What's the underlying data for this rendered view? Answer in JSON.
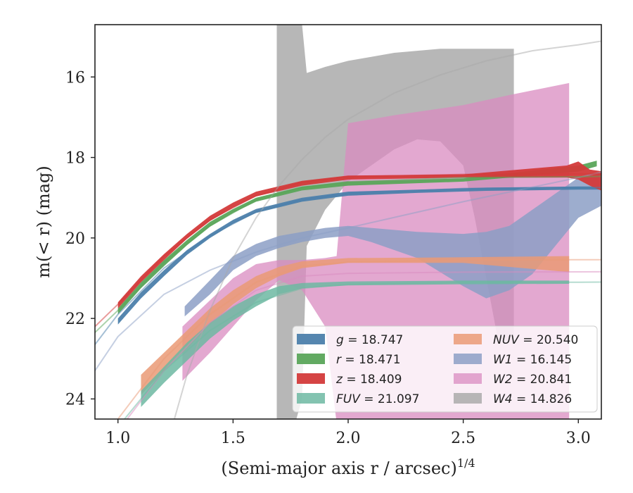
{
  "chart_data": {
    "type": "line",
    "xlabel": "(Semi-major axis r / arcsec)^1/4",
    "ylabel": "m(< r) (mag)",
    "xlim": [
      0.9,
      3.1
    ],
    "ylim": [
      24.5,
      14.7
    ],
    "y_inverted": true,
    "xticks": [
      "1.0",
      "1.5",
      "2.0",
      "2.5",
      "3.0"
    ],
    "yticks": [
      "16",
      "18",
      "20",
      "22",
      "24"
    ],
    "xtick_values": [
      1.0,
      1.5,
      2.0,
      2.5,
      3.0
    ],
    "ytick_values": [
      16,
      18,
      20,
      22,
      24
    ],
    "grid": false,
    "legend_position": "bottom-right",
    "series": [
      {
        "name": "g = 18.747",
        "band": "g",
        "value": "18.747",
        "color": "#4c7fab",
        "alpha": 0.95,
        "band_points": [
          [
            1.0,
            22.0,
            22.15
          ],
          [
            1.1,
            21.35,
            21.5
          ],
          [
            1.2,
            20.8,
            20.95
          ],
          [
            1.3,
            20.3,
            20.42
          ],
          [
            1.4,
            19.9,
            20.0
          ],
          [
            1.5,
            19.55,
            19.65
          ],
          [
            1.6,
            19.28,
            19.38
          ],
          [
            1.8,
            19.0,
            19.1
          ],
          [
            2.0,
            18.85,
            18.95
          ],
          [
            2.3,
            18.8,
            18.88
          ],
          [
            2.6,
            18.75,
            18.83
          ],
          [
            3.0,
            18.72,
            18.8
          ],
          [
            3.1,
            18.72,
            18.8
          ]
        ],
        "fit_x": [
          0.9,
          1.0,
          1.2,
          1.4,
          1.6,
          1.8,
          2.0,
          2.5,
          3.0,
          3.11
        ],
        "fit_y": [
          22.65,
          21.9,
          20.75,
          19.95,
          19.35,
          19.05,
          18.9,
          18.77,
          18.75,
          18.747
        ]
      },
      {
        "name": "r = 18.471",
        "band": "r",
        "value": "18.471",
        "color": "#5aa55a",
        "alpha": 0.95,
        "band_points": [
          [
            1.0,
            21.75,
            21.9
          ],
          [
            1.1,
            21.1,
            21.25
          ],
          [
            1.2,
            20.55,
            20.7
          ],
          [
            1.3,
            20.05,
            20.18
          ],
          [
            1.4,
            19.6,
            19.72
          ],
          [
            1.5,
            19.28,
            19.38
          ],
          [
            1.6,
            19.0,
            19.1
          ],
          [
            1.8,
            18.72,
            18.82
          ],
          [
            2.0,
            18.6,
            18.7
          ],
          [
            2.5,
            18.52,
            18.6
          ],
          [
            3.0,
            18.2,
            18.35
          ],
          [
            3.08,
            18.08,
            18.22
          ]
        ],
        "fit_x": [
          0.9,
          1.0,
          1.2,
          1.4,
          1.6,
          1.8,
          2.0,
          2.5,
          3.0,
          3.11
        ],
        "fit_y": [
          22.35,
          21.8,
          20.6,
          19.7,
          19.05,
          18.75,
          18.6,
          18.5,
          18.48,
          18.471
        ]
      },
      {
        "name": "z = 18.409",
        "band": "z",
        "value": "18.409",
        "color": "#d33a3a",
        "alpha": 0.95,
        "band_points": [
          [
            1.0,
            21.6,
            21.75
          ],
          [
            1.1,
            20.95,
            21.1
          ],
          [
            1.2,
            20.4,
            20.55
          ],
          [
            1.3,
            19.9,
            20.02
          ],
          [
            1.4,
            19.45,
            19.58
          ],
          [
            1.5,
            19.12,
            19.25
          ],
          [
            1.6,
            18.85,
            18.97
          ],
          [
            1.8,
            18.58,
            18.7
          ],
          [
            2.0,
            18.45,
            18.55
          ],
          [
            2.5,
            18.42,
            18.5
          ],
          [
            2.95,
            18.2,
            18.5
          ],
          [
            3.0,
            18.1,
            18.55
          ],
          [
            3.05,
            18.3,
            18.7
          ],
          [
            3.11,
            18.35,
            18.85
          ]
        ],
        "fit_x": [
          0.9,
          1.0,
          1.2,
          1.4,
          1.6,
          1.8,
          2.0,
          2.5,
          3.0,
          3.11
        ],
        "fit_y": [
          22.2,
          21.65,
          20.45,
          19.55,
          18.95,
          18.62,
          18.48,
          18.42,
          18.41,
          18.409
        ]
      },
      {
        "name": "FUV = 21.097",
        "band": "FUV",
        "value": "21.097",
        "color": "#6db9a2",
        "alpha": 0.85,
        "band_points": [
          [
            1.1,
            23.8,
            24.2
          ],
          [
            1.2,
            23.2,
            23.6
          ],
          [
            1.3,
            22.6,
            23.05
          ],
          [
            1.4,
            22.1,
            22.5
          ],
          [
            1.5,
            21.7,
            22.05
          ],
          [
            1.6,
            21.4,
            21.7
          ],
          [
            1.7,
            21.2,
            21.4
          ],
          [
            1.8,
            21.12,
            21.25
          ],
          [
            2.0,
            21.08,
            21.18
          ],
          [
            2.5,
            21.06,
            21.15
          ],
          [
            2.96,
            21.06,
            21.14
          ]
        ],
        "fit_x": [
          0.9,
          1.0,
          1.2,
          1.4,
          1.6,
          1.8,
          2.0,
          2.5,
          3.0,
          3.11
        ],
        "fit_y": [
          25.5,
          24.7,
          23.3,
          22.3,
          21.6,
          21.25,
          21.15,
          21.1,
          21.1,
          21.097
        ]
      },
      {
        "name": "NUV = 20.540",
        "band": "NUV",
        "value": "20.540",
        "color": "#ea9a75",
        "alpha": 0.85,
        "band_points": [
          [
            1.1,
            23.4,
            23.9
          ],
          [
            1.2,
            22.85,
            23.3
          ],
          [
            1.3,
            22.3,
            22.75
          ],
          [
            1.4,
            21.75,
            22.15
          ],
          [
            1.5,
            21.3,
            21.65
          ],
          [
            1.6,
            20.95,
            21.25
          ],
          [
            1.7,
            20.72,
            20.95
          ],
          [
            1.8,
            20.58,
            20.75
          ],
          [
            2.0,
            20.5,
            20.62
          ],
          [
            2.5,
            20.48,
            20.62
          ],
          [
            2.96,
            20.45,
            20.85
          ]
        ],
        "fit_x": [
          0.9,
          1.0,
          1.2,
          1.4,
          1.6,
          1.8,
          2.0,
          2.5,
          3.0,
          3.11
        ],
        "fit_y": [
          25.2,
          24.5,
          23.0,
          21.9,
          21.1,
          20.7,
          20.6,
          20.55,
          20.54,
          20.54
        ]
      },
      {
        "name": "W1 = 16.145",
        "band": "W1",
        "value": "16.145",
        "color": "#8c9fc6",
        "alpha": 0.85,
        "band_points": [
          [
            1.29,
            21.7,
            21.95
          ],
          [
            1.4,
            21.05,
            21.4
          ],
          [
            1.5,
            20.45,
            20.8
          ],
          [
            1.6,
            20.15,
            20.45
          ],
          [
            1.7,
            19.95,
            20.25
          ],
          [
            1.8,
            19.85,
            20.1
          ],
          [
            1.9,
            19.75,
            20.0
          ],
          [
            2.0,
            19.7,
            19.95
          ],
          [
            2.1,
            19.75,
            20.1
          ],
          [
            2.3,
            19.85,
            20.5
          ],
          [
            2.5,
            19.9,
            21.2
          ],
          [
            2.6,
            19.85,
            21.5
          ],
          [
            2.7,
            19.7,
            21.3
          ],
          [
            2.8,
            19.3,
            20.9
          ],
          [
            2.9,
            18.9,
            20.2
          ],
          [
            3.0,
            18.5,
            19.5
          ],
          [
            3.1,
            18.4,
            19.2
          ]
        ],
        "fit_x": [
          0.9,
          1.0,
          1.2,
          1.4,
          1.6,
          1.8,
          2.0,
          2.5,
          3.0,
          3.11
        ],
        "fit_y": [
          23.3,
          22.45,
          21.4,
          20.8,
          20.35,
          20.0,
          19.75,
          19.1,
          18.5,
          18.35
        ]
      },
      {
        "name": "W2 = 20.841",
        "band": "W2",
        "value": "20.841",
        "color": "#d98bc0",
        "alpha": 0.75,
        "band_points": [
          [
            1.28,
            22.2,
            23.55
          ],
          [
            1.4,
            21.55,
            22.85
          ],
          [
            1.5,
            21.0,
            22.2
          ],
          [
            1.6,
            20.65,
            21.55
          ],
          [
            1.7,
            20.55,
            21.05
          ],
          [
            1.8,
            20.55,
            21.3
          ],
          [
            1.9,
            20.5,
            22.2
          ],
          [
            1.95,
            20.45,
            24.6
          ],
          [
            2.0,
            17.15,
            24.6
          ],
          [
            2.2,
            16.95,
            24.6
          ],
          [
            2.5,
            16.7,
            24.6
          ],
          [
            2.7,
            16.45,
            24.6
          ],
          [
            2.96,
            16.15,
            24.6
          ]
        ],
        "fit_x": [
          0.9,
          1.0,
          1.2,
          1.4,
          1.6,
          1.8,
          2.0,
          2.5,
          3.0,
          3.11
        ],
        "fit_y": [
          25.6,
          24.8,
          23.3,
          22.1,
          21.3,
          20.95,
          20.88,
          20.85,
          20.842,
          20.841
        ]
      },
      {
        "name": "W4 = 14.826",
        "band": "W4",
        "value": "14.826",
        "color": "#aaaaaa",
        "alpha": 0.85,
        "band_points": [
          [
            1.69,
            14.7,
            24.6
          ],
          [
            1.77,
            14.7,
            24.6
          ],
          [
            1.8,
            14.7,
            24.0
          ],
          [
            1.82,
            15.9,
            20.2
          ],
          [
            1.9,
            15.75,
            19.3
          ],
          [
            2.0,
            15.6,
            18.6
          ],
          [
            2.1,
            15.5,
            18.2
          ],
          [
            2.2,
            15.4,
            17.8
          ],
          [
            2.3,
            15.35,
            17.55
          ],
          [
            2.4,
            15.3,
            17.6
          ],
          [
            2.5,
            15.3,
            18.2
          ],
          [
            2.55,
            15.3,
            19.5
          ],
          [
            2.6,
            15.3,
            21.0
          ],
          [
            2.65,
            15.3,
            22.5
          ],
          [
            2.72,
            15.3,
            22.6
          ]
        ],
        "fit_x": [
          1.24,
          1.3,
          1.4,
          1.5,
          1.6,
          1.7,
          1.8,
          1.9,
          2.0,
          2.2,
          2.4,
          2.6,
          2.8,
          3.0,
          3.11
        ],
        "fit_y": [
          24.6,
          23.4,
          21.8,
          20.5,
          19.5,
          18.7,
          18.05,
          17.5,
          17.05,
          16.4,
          15.95,
          15.6,
          15.35,
          15.2,
          15.1
        ]
      }
    ]
  }
}
